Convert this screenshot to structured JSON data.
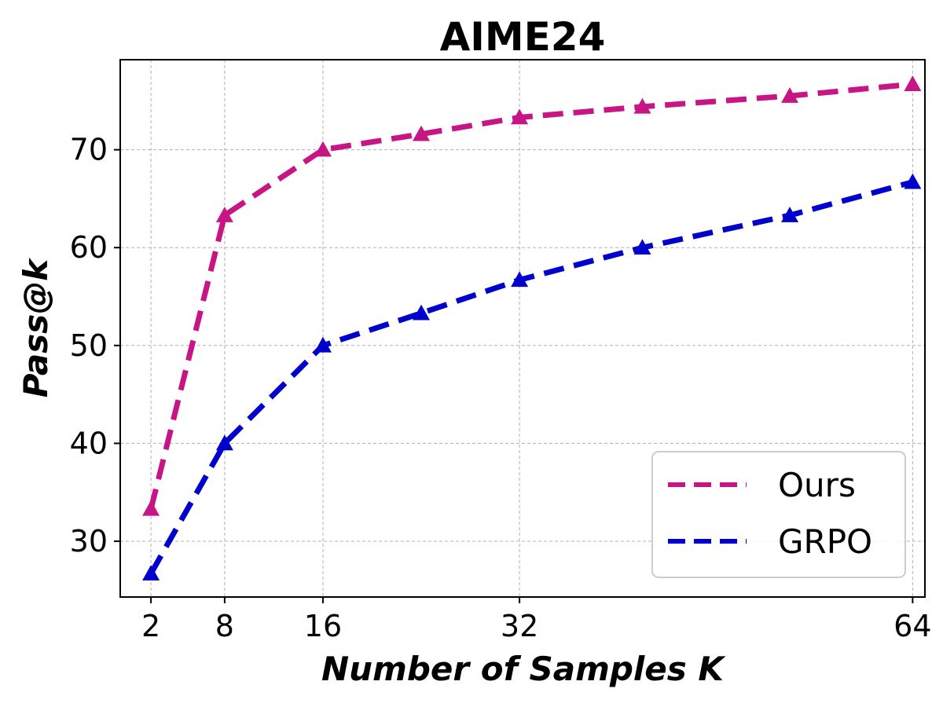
{
  "chart_data": {
    "type": "line",
    "title": "AIME24",
    "xlabel": "Number of Samples K",
    "ylabel": "Pass@k",
    "xlim": [
      -0.5,
      65
    ],
    "ylim": [
      24.3,
      79.2
    ],
    "xticks": [
      2,
      8,
      16,
      32,
      64
    ],
    "yticks": [
      30,
      40,
      50,
      60,
      70
    ],
    "grid": true,
    "legend_position": "lower-right",
    "series": [
      {
        "name": "Ours",
        "color": "#c71585",
        "x": [
          2,
          8,
          16,
          24,
          32,
          42,
          54,
          64
        ],
        "y": [
          33.3,
          63.3,
          70.0,
          71.6,
          73.3,
          74.4,
          75.5,
          76.7
        ]
      },
      {
        "name": "GRPO",
        "color": "#0000cd",
        "x": [
          2,
          8,
          16,
          24,
          32,
          42,
          54,
          64
        ],
        "y": [
          26.7,
          40.0,
          50.0,
          53.3,
          56.7,
          60.0,
          63.3,
          66.7
        ]
      }
    ]
  }
}
